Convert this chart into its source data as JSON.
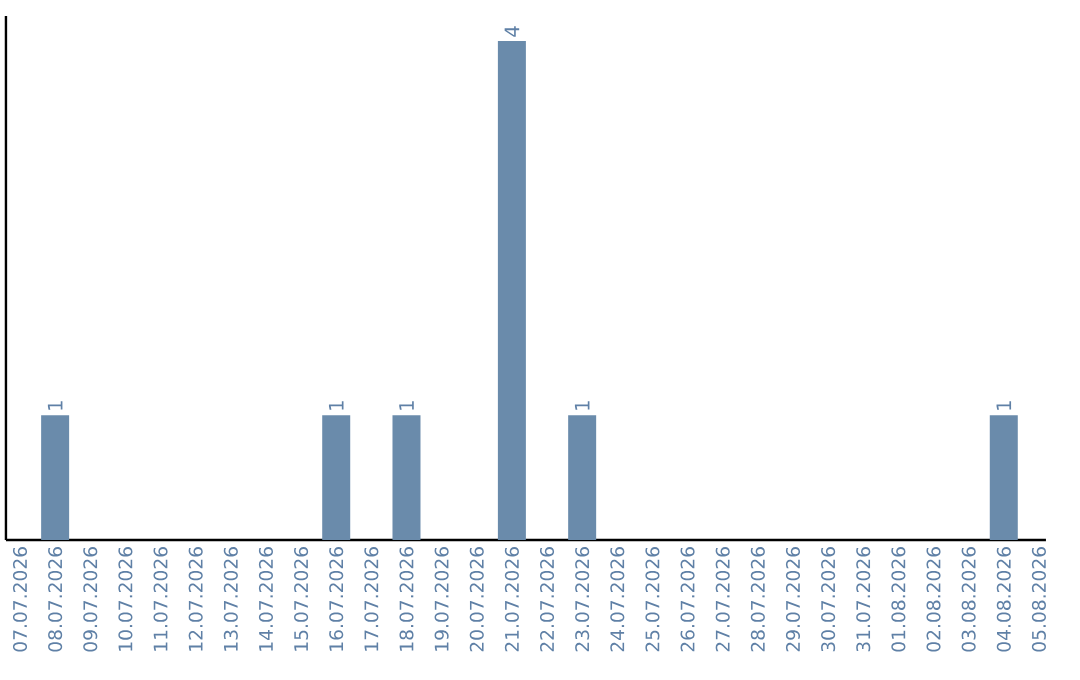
{
  "chart_data": {
    "type": "bar",
    "categories": [
      "07.07.2026",
      "08.07.2026",
      "09.07.2026",
      "10.07.2026",
      "11.07.2026",
      "12.07.2026",
      "13.07.2026",
      "14.07.2026",
      "15.07.2026",
      "16.07.2026",
      "17.07.2026",
      "18.07.2026",
      "19.07.2026",
      "20.07.2026",
      "21.07.2026",
      "22.07.2026",
      "23.07.2026",
      "24.07.2026",
      "25.07.2026",
      "26.07.2026",
      "27.07.2026",
      "28.07.2026",
      "29.07.2026",
      "30.07.2026",
      "31.07.2026",
      "01.08.2026",
      "02.08.2026",
      "03.08.2026",
      "04.08.2026",
      "05.08.2026"
    ],
    "values": [
      0,
      1,
      0,
      0,
      0,
      0,
      0,
      0,
      0,
      1,
      0,
      1,
      0,
      0,
      4,
      0,
      1,
      0,
      0,
      0,
      0,
      0,
      0,
      0,
      0,
      0,
      0,
      0,
      1,
      0
    ],
    "value_labels": [
      null,
      "1",
      null,
      null,
      null,
      null,
      null,
      null,
      null,
      "1",
      null,
      "1",
      null,
      null,
      "4",
      null,
      "1",
      null,
      null,
      null,
      null,
      null,
      null,
      null,
      null,
      null,
      null,
      null,
      "1",
      null
    ],
    "color": "#6a8bab",
    "ylim": [
      0,
      4.2
    ],
    "tick_labels": "x"
  }
}
